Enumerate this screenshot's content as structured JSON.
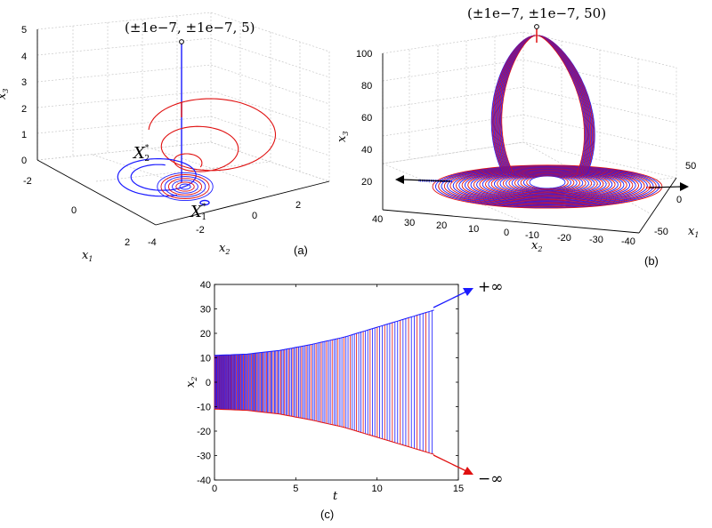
{
  "colors": {
    "blue": "#1a1aff",
    "red": "#e01010",
    "grid": "#c8c8c8",
    "axis": "#000000"
  },
  "panels": [
    {
      "label": "(a)"
    },
    {
      "label": "(b)"
    },
    {
      "label": "(c)"
    }
  ],
  "chart_data": [
    {
      "type": "line",
      "panel": "(a)",
      "projection": "3d",
      "annotation": "(±1e−7, ±1e−7, 5)",
      "equilibria": [
        {
          "name": "X",
          "sub": "2",
          "sup": "*"
        },
        {
          "name": "X",
          "sub": "1",
          "sup": "*"
        }
      ],
      "axes": {
        "x1": {
          "label": "x",
          "sub": "1",
          "ticks": [
            "-2",
            "0",
            "2"
          ],
          "range": [
            -2,
            2
          ]
        },
        "x2": {
          "label": "x",
          "sub": "2",
          "ticks": [
            "-4",
            "-2",
            "0",
            "2"
          ],
          "range": [
            -4,
            3
          ]
        },
        "x3": {
          "label": "x",
          "sub": "3",
          "ticks": [
            "0",
            "1",
            "2",
            "3",
            "4",
            "5"
          ],
          "range": [
            0,
            5
          ]
        }
      },
      "series": [
        {
          "color": "blue",
          "start": [
            0,
            0,
            5
          ]
        },
        {
          "color": "red",
          "start": [
            0,
            0,
            5
          ]
        }
      ],
      "grid": true
    },
    {
      "type": "line",
      "panel": "(b)",
      "projection": "3d",
      "annotation": "(±1e−7, ±1e−7, 50)",
      "axes": {
        "x1": {
          "label": "x",
          "sub": "1",
          "ticks": [
            "50",
            "0",
            "-50"
          ],
          "range": [
            -50,
            50
          ]
        },
        "x2": {
          "label": "x",
          "sub": "2",
          "ticks": [
            "40",
            "30",
            "20",
            "10",
            "0",
            "-10",
            "-20",
            "-30",
            "-40"
          ],
          "range": [
            -40,
            40
          ]
        },
        "x3": {
          "label": "x",
          "sub": "3",
          "ticks": [
            "20",
            "40",
            "60",
            "80",
            "100"
          ],
          "range": [
            20,
            100
          ]
        }
      },
      "series": [
        {
          "color": "blue",
          "start": [
            0,
            0,
            50
          ]
        },
        {
          "color": "red",
          "start": [
            0,
            0,
            50
          ]
        }
      ],
      "grid": true
    },
    {
      "type": "line",
      "panel": "(c)",
      "xlabel": "t",
      "ylabel": {
        "label": "x",
        "sub": "2"
      },
      "xlim": [
        0,
        15
      ],
      "ylim": [
        -40,
        40
      ],
      "xticks": [
        "0",
        "5",
        "10",
        "15"
      ],
      "yticks": [
        "40",
        "30",
        "20",
        "10",
        "0",
        "-10",
        "-20",
        "-30",
        "-40"
      ],
      "envelope": {
        "t": [
          0,
          2,
          4,
          6,
          8,
          10,
          12,
          13.5
        ],
        "amp": [
          11,
          11.5,
          13,
          15.5,
          18.5,
          22.5,
          26.5,
          29.5
        ]
      },
      "series": [
        {
          "color": "blue",
          "end_label": "+∞"
        },
        {
          "color": "red",
          "end_label": "−∞"
        }
      ],
      "grid": false
    }
  ]
}
